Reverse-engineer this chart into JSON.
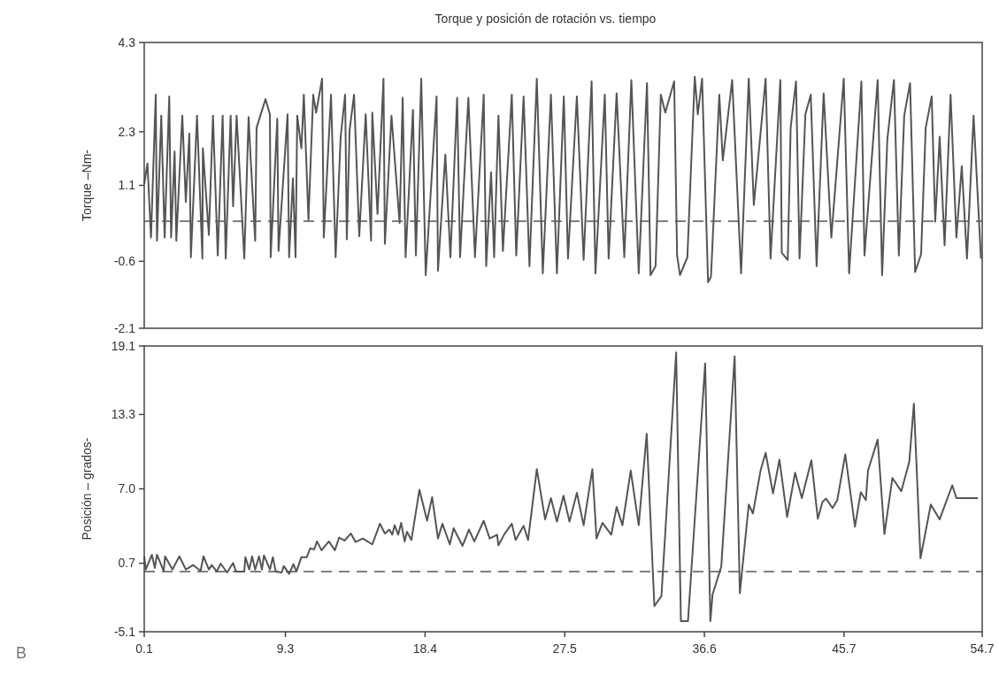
{
  "chart_data": [
    {
      "type": "line",
      "title": "Torque y posición de rotación vs. tiempo",
      "ylabel": "Torque –Nm-",
      "xlim": [
        0.1,
        54.7
      ],
      "ylim": [
        -2.1,
        4.3
      ],
      "yticks": [
        -2.1,
        -0.6,
        1.1,
        2.3,
        4.3
      ],
      "tick_labels": "y",
      "line_style": "solid",
      "marker": "none",
      "color": "#555555",
      "x": [
        0.1,
        0.31,
        0.54,
        0.85,
        0.93,
        1.21,
        1.43,
        1.73,
        1.85,
        2.08,
        2.19,
        2.58,
        2.81,
        3.04,
        3.14,
        3.54,
        3.89,
        3.92,
        4.31,
        4.58,
        4.89,
        5.21,
        5.41,
        5.73,
        5.89,
        6.12,
        6.62,
        6.9,
        7.0,
        7.33,
        7.42,
        8.0,
        8.29,
        8.34,
        8.77,
        8.85,
        9.44,
        9.54,
        9.79,
        9.96,
        10.07,
        10.34,
        10.5,
        10.8,
        11.11,
        11.3,
        11.69,
        11.8,
        12.27,
        12.57,
        12.9,
        13.19,
        13.3,
        13.48,
        13.77,
        14.11,
        14.53,
        14.88,
        14.96,
        15.3,
        15.69,
        15.78,
        16.21,
        16.74,
        16.94,
        17.13,
        17.61,
        17.8,
        18.15,
        18.44,
        19.15,
        19.24,
        19.72,
        20.05,
        20.49,
        20.68,
        21.22,
        21.65,
        22.22,
        22.38,
        22.7,
        22.9,
        23.18,
        23.47,
        24.05,
        24.34,
        24.82,
        25.2,
        25.68,
        26.07,
        26.6,
        26.99,
        27.44,
        27.71,
        28.29,
        28.73,
        29.25,
        29.5,
        30.11,
        30.36,
        30.88,
        31.38,
        31.84,
        32.32,
        32.86,
        33.09,
        33.42,
        33.76,
        34.05,
        34.63,
        34.82,
        35.01,
        35.49,
        35.97,
        36.17,
        36.45,
        36.84,
        37.03,
        37.57,
        37.8,
        38.41,
        38.99,
        39.49,
        39.82,
        40.59,
        40.91,
        41.55,
        41.64,
        42.03,
        42.22,
        42.57,
        42.8,
        43.18,
        43.53,
        43.91,
        44.37,
        44.87,
        45.68,
        46.03,
        46.83,
        47.03,
        47.89,
        48.18,
        48.52,
        48.95,
        49.27,
        49.62,
        50.0,
        50.33,
        50.72,
        51.02,
        51.41,
        51.64,
        51.93,
        52.25,
        52.64,
        53.02,
        53.37,
        53.71,
        54.14,
        54.62
      ],
      "values": [
        1.13,
        1.59,
        -0.07,
        3.13,
        -0.14,
        2.66,
        -0.07,
        3.09,
        -0.07,
        1.86,
        -0.14,
        2.66,
        0.73,
        2.26,
        -0.51,
        2.66,
        -0.54,
        1.93,
        -0.01,
        2.66,
        -0.47,
        2.66,
        -0.54,
        2.66,
        0.63,
        2.66,
        -0.54,
        2.63,
        1.93,
        -0.14,
        2.39,
        3.03,
        2.69,
        -0.51,
        2.59,
        -0.37,
        2.69,
        -0.51,
        1.26,
        -0.51,
        2.66,
        1.93,
        3.13,
        0.33,
        3.13,
        2.73,
        3.49,
        -0.07,
        3.13,
        -0.51,
        2.19,
        3.13,
        -0.11,
        2.33,
        3.13,
        -0.04,
        2.69,
        -0.14,
        2.73,
        0.46,
        3.49,
        -0.21,
        2.66,
        0.26,
        3.06,
        -0.51,
        2.79,
        -0.47,
        3.49,
        -0.91,
        3.09,
        -0.81,
        1.79,
        -0.51,
        3.06,
        -0.51,
        3.06,
        -0.51,
        3.13,
        -0.71,
        1.39,
        -0.51,
        2.66,
        -0.37,
        3.13,
        -0.47,
        3.09,
        -0.71,
        3.49,
        -0.87,
        3.13,
        -0.87,
        3.09,
        -0.54,
        3.09,
        -0.57,
        3.43,
        -0.87,
        3.13,
        -0.54,
        3.16,
        -0.51,
        3.46,
        -0.87,
        3.39,
        -0.91,
        -0.71,
        3.13,
        2.73,
        3.43,
        -0.47,
        -0.91,
        -0.51,
        3.53,
        2.69,
        3.49,
        -1.07,
        -0.94,
        3.13,
        1.66,
        3.46,
        -0.87,
        3.49,
        0.66,
        3.49,
        -0.54,
        3.46,
        -0.41,
        -0.57,
        2.39,
        3.43,
        -0.54,
        2.69,
        3.13,
        -0.71,
        3.16,
        -0.07,
        3.49,
        -0.87,
        3.43,
        -0.47,
        3.46,
        -0.91,
        2.13,
        3.46,
        -0.47,
        2.66,
        3.39,
        -0.84,
        -0.44,
        2.39,
        3.09,
        0.29,
        2.19,
        -0.24,
        3.13,
        -0.07,
        1.53,
        -0.54,
        2.66,
        -0.54
      ],
      "ref_lines": [
        {
          "axis": "y",
          "value": 0.3,
          "line_style": "dashed",
          "color": "#555555"
        }
      ]
    },
    {
      "type": "line",
      "ylabel": "Posición – grados-",
      "xlim": [
        0.1,
        54.7
      ],
      "xticks": [
        0.1,
        9.3,
        18.4,
        27.5,
        36.6,
        45.7,
        54.7
      ],
      "ylim": [
        -5.1,
        19.1
      ],
      "yticks": [
        -5.1,
        0.7,
        {
          "value": 7.0,
          "label": "7.0"
        },
        13.3,
        19.1
      ],
      "line_style": "solid",
      "marker": "none",
      "color": "#555555",
      "annotations": [
        "B"
      ],
      "x": [
        0.1,
        0.2,
        0.6,
        0.79,
        0.93,
        1.37,
        1.46,
        1.94,
        2.39,
        2.81,
        3.29,
        3.77,
        3.96,
        4.31,
        4.5,
        4.83,
        5.08,
        5.5,
        5.89,
        6.08,
        6.62,
        6.69,
        6.94,
        7.13,
        7.33,
        7.58,
        7.77,
        7.9,
        8.29,
        8.48,
        8.67,
        9.06,
        9.19,
        9.54,
        9.82,
        10.02,
        10.34,
        10.69,
        10.92,
        11.17,
        11.36,
        11.65,
        12.13,
        12.52,
        12.8,
        13.15,
        13.57,
        13.86,
        14.34,
        14.96,
        15.46,
        15.78,
        16.07,
        16.26,
        16.42,
        16.65,
        16.84,
        17.07,
        17.22,
        17.51,
        18.03,
        18.53,
        18.86,
        19.24,
        19.53,
        20.01,
        20.26,
        20.84,
        21.26,
        21.61,
        22.22,
        22.61,
        23.09,
        23.18,
        23.57,
        24.05,
        24.3,
        24.82,
        25.11,
        25.68,
        26.22,
        26.6,
        26.99,
        27.42,
        27.81,
        28.29,
        28.73,
        29.3,
        29.57,
        29.96,
        30.53,
        30.88,
        31.26,
        31.8,
        32.32,
        32.84,
        33.34,
        33.8,
        34.76,
        35.07,
        35.53,
        36.65,
        36.99,
        37.13,
        37.7,
        38.57,
        38.91,
        39.49,
        39.76,
        40.26,
        40.59,
        41.07,
        41.49,
        41.99,
        42.51,
        42.95,
        43.57,
        43.99,
        44.3,
        44.53,
        44.95,
        45.26,
        45.78,
        46.41,
        46.79,
        47.12,
        47.26,
        47.89,
        48.33,
        48.85,
        49.43,
        49.95,
        50.25,
        50.68,
        51.35,
        51.93,
        52.75,
        53.02,
        54.42
      ],
      "values": [
        1.29,
        0.17,
        1.42,
        0.3,
        1.42,
        0.05,
        1.29,
        0.17,
        1.29,
        0.17,
        0.55,
        0.05,
        1.29,
        0.17,
        0.55,
        0.0,
        0.67,
        -0.08,
        0.72,
        0.0,
        0.0,
        1.22,
        0.17,
        1.29,
        0.17,
        1.29,
        0.17,
        1.37,
        0.17,
        1.22,
        0.0,
        -0.08,
        0.47,
        -0.2,
        0.62,
        0.0,
        1.22,
        1.22,
        1.97,
        1.87,
        2.55,
        1.8,
        2.55,
        1.8,
        2.87,
        2.62,
        3.22,
        2.5,
        2.8,
        2.3,
        4.05,
        3.22,
        3.55,
        3.12,
        3.92,
        3.12,
        4.12,
        2.55,
        3.37,
        2.67,
        6.92,
        4.3,
        6.3,
        2.8,
        4.05,
        2.3,
        3.67,
        2.17,
        3.55,
        2.55,
        4.3,
        2.8,
        3.12,
        2.22,
        3.17,
        4.05,
        2.67,
        3.87,
        2.67,
        8.67,
        4.42,
        6.22,
        4.22,
        6.42,
        4.22,
        6.67,
        3.92,
        8.67,
        2.8,
        4.12,
        3.12,
        5.47,
        3.92,
        8.55,
        3.92,
        11.67,
        -2.93,
        -2.08,
        18.55,
        -4.2,
        -4.2,
        17.62,
        -4.2,
        -1.95,
        0.42,
        18.22,
        -1.83,
        5.67,
        4.92,
        8.55,
        10.05,
        6.62,
        9.47,
        4.62,
        8.37,
        6.22,
        9.42,
        4.47,
        5.92,
        6.17,
        5.37,
        6.05,
        9.92,
        3.8,
        6.72,
        6.05,
        8.55,
        11.17,
        3.17,
        7.92,
        6.8,
        9.3,
        14.22,
        1.12,
        5.67,
        4.42,
        7.3,
        6.22,
        6.22
      ],
      "ref_lines": [
        {
          "axis": "y",
          "value": 0.0,
          "line_style": "dashed",
          "color": "#555555"
        }
      ]
    }
  ]
}
